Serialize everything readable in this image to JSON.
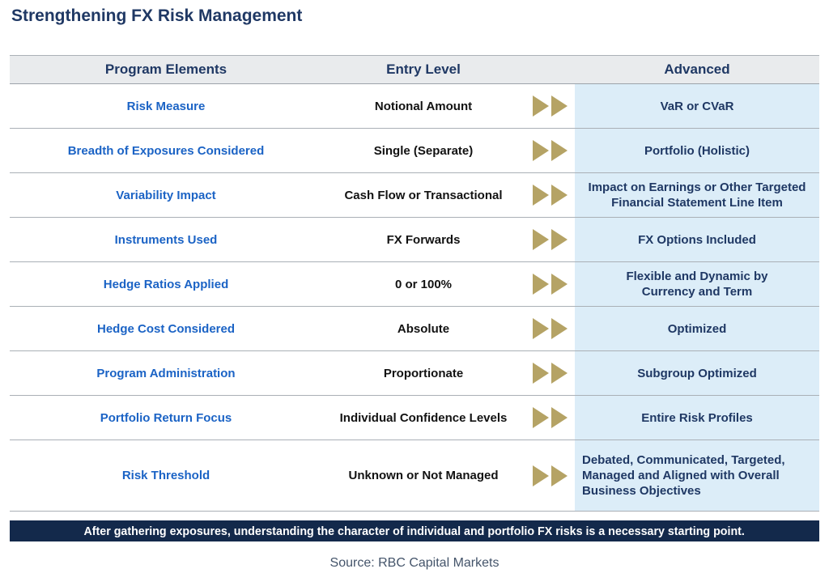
{
  "title": "Strengthening FX Risk Management",
  "table": {
    "headers": [
      "Program Elements",
      "Entry Level",
      "Advanced"
    ],
    "rows": [
      {
        "element": "Risk Measure",
        "entry": "Notional Amount",
        "advanced": "VaR or CVaR"
      },
      {
        "element": "Breadth of Exposures Considered",
        "entry": "Single (Separate)",
        "advanced": "Portfolio (Holistic)"
      },
      {
        "element": "Variability Impact",
        "entry": "Cash Flow or Transactional",
        "advanced": "Impact on Earnings or Other Targeted\nFinancial Statement Line Item"
      },
      {
        "element": "Instruments Used",
        "entry": "FX Forwards",
        "advanced": "FX Options Included"
      },
      {
        "element": "Hedge Ratios Applied",
        "entry": "0 or 100%",
        "advanced": "Flexible and Dynamic by\nCurrency and Term"
      },
      {
        "element": "Hedge Cost Considered",
        "entry": "Absolute",
        "advanced": "Optimized"
      },
      {
        "element": "Program Administration",
        "entry": "Proportionate",
        "advanced": "Subgroup Optimized"
      },
      {
        "element": "Portfolio Return Focus",
        "entry": "Individual Confidence Levels",
        "advanced": "Entire Risk Profiles"
      },
      {
        "element": "Risk Threshold",
        "entry": "Unknown or Not Managed",
        "advanced": "Debated, Communicated, Targeted,\nManaged and Aligned with Overall\nBusiness Objectives"
      }
    ]
  },
  "banner_text": "After gathering exposures, understanding the character of individual and portfolio FX risks is a necessary starting point.",
  "source_text": "Source: RBC Capital Markets",
  "icons": {
    "row_arrow": "double-chevron-right-icon"
  },
  "colors": {
    "title_navy": "#1F3864",
    "header_bg": "#E9EBED",
    "element_blue": "#1B63C5",
    "entry_text": "#121212",
    "advanced_bg": "#DCEDF8",
    "advanced_text": "#1F3864",
    "arrow_gold": "#B5A365",
    "banner_bg": "#13294B",
    "banner_text": "#FFFFFF",
    "source_gray": "#44546A",
    "divider_gray": "#AAB0B6"
  }
}
